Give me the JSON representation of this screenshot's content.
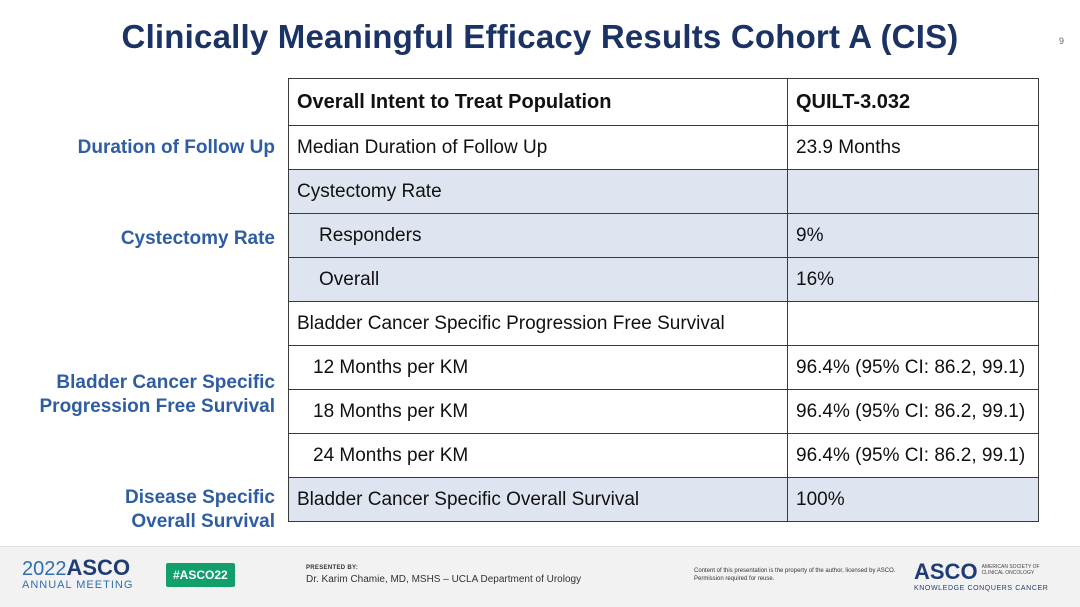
{
  "slide": {
    "title": "Clinically Meaningful Efficacy Results Cohort A (CIS)",
    "page_number": "9"
  },
  "side_labels": {
    "follow_up": "Duration of Follow Up",
    "cystectomy": "Cystectomy Rate",
    "pfs_line1": "Bladder Cancer Specific",
    "pfs_line2": "Progression Free Survival",
    "os_line1": "Disease Specific",
    "os_line2": "Overall Survival"
  },
  "table": {
    "header": [
      "Overall Intent to Treat Population",
      "QUILT-3.032"
    ],
    "rows": [
      {
        "label": "Median Duration of Follow Up",
        "value": "23.9 Months"
      },
      {
        "label": "Cystectomy Rate",
        "value": ""
      },
      {
        "label": "Responders",
        "value": "9%"
      },
      {
        "label": "Overall",
        "value": "16%"
      },
      {
        "label": "Bladder Cancer Specific Progression Free Survival",
        "value": ""
      },
      {
        "label": "12 Months per KM",
        "value": "96.4% (95% CI: 86.2, 99.1)"
      },
      {
        "label": "18 Months per KM",
        "value": "96.4% (95% CI: 86.2, 99.1)"
      },
      {
        "label": "24 Months per KM",
        "value": "96.4% (95% CI: 86.2, 99.1)"
      },
      {
        "label": "Bladder Cancer Specific Overall Survival",
        "value": "100%"
      }
    ]
  },
  "footer": {
    "meeting_year": "2022",
    "meeting_brand": "ASCO",
    "meeting_sub": "ANNUAL MEETING",
    "hashtag": "#ASCO22",
    "presented_by_label": "PRESENTED BY:",
    "presenter": "Dr. Karim Chamie, MD, MSHS – UCLA Department of Urology",
    "content_note": "Content of this presentation is the property of the author, licensed by ASCO. Permission required for reuse.",
    "asco_brand": "ASCO",
    "asco_full": "AMERICAN SOCIETY OF CLINICAL ONCOLOGY",
    "asco_tagline": "KNOWLEDGE CONQUERS CANCER"
  },
  "colors": {
    "title": "#1a3264",
    "side_label": "#2f5da3",
    "shaded_row": "#dfe5f0",
    "hashtag_bg": "#12a06a"
  }
}
